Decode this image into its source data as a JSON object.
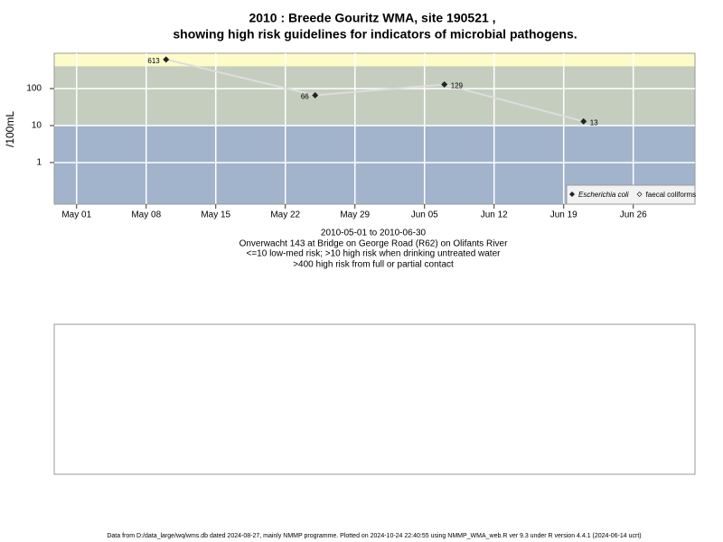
{
  "chart_data": {
    "type": "line",
    "title": "2010 : Breede Gouritz WMA, site 190521 ,",
    "subtitle": "showing high risk guidelines for indicators of microbial pathogens.",
    "y_label": "/100mL",
    "notes": [
      "2010-05-01 to 2010-06-30",
      "Onverwacht 143 at Bridge on George Road (R62) on Olifants River",
      "<=10 low-med risk; >10 high risk when drinking untreated water",
      ">400 high risk from full or partial contact"
    ],
    "footer": "Data from D:/data_large/wq/wms.db dated 2024-08-27, mainly NMMP programme. Plotted on 2024-10-24 22:40:55 using NMMP_WMA_web.R ver 9.3 under R version 4.4.1 (2024-06-14 ucrt)",
    "x": [
      "2010-05-10",
      "2010-05-25",
      "2010-06-07",
      "2010-06-21"
    ],
    "series": [
      {
        "name": "Escherichia coli",
        "color": "#222222",
        "values": [
          613,
          66,
          129,
          13
        ]
      },
      {
        "name": "faecal coliforms",
        "color": "#222222",
        "values": [
          null,
          null,
          null,
          null
        ]
      }
    ],
    "line_color": "#dddddd",
    "xlim": [
      "2010-04-28T18:00",
      "2010-07-02T05:00"
    ],
    "xticks": [
      {
        "value": "2010-05-01",
        "label": "May 01"
      },
      {
        "value": "2010-05-08",
        "label": "May 08"
      },
      {
        "value": "2010-05-15",
        "label": "May 15"
      },
      {
        "value": "2010-05-22",
        "label": "May 22"
      },
      {
        "value": "2010-05-29",
        "label": "May 29"
      },
      {
        "value": "2010-06-05",
        "label": "Jun 05"
      },
      {
        "value": "2010-06-12",
        "label": "Jun 12"
      },
      {
        "value": "2010-06-19",
        "label": "Jun 19"
      },
      {
        "value": "2010-06-26",
        "label": "Jun 26"
      }
    ],
    "ylim": [
      0.075,
      900
    ],
    "yticks": [
      1,
      10,
      100
    ],
    "log_y": true,
    "grid": true,
    "bands": [
      {
        "min": 400,
        "color": "#fdfcc8"
      },
      {
        "min": 10,
        "max": 400,
        "color": "#c5cdbe"
      },
      {
        "max": 10,
        "color": "#a2b3cc"
      }
    ],
    "legend": "bottom-right"
  }
}
